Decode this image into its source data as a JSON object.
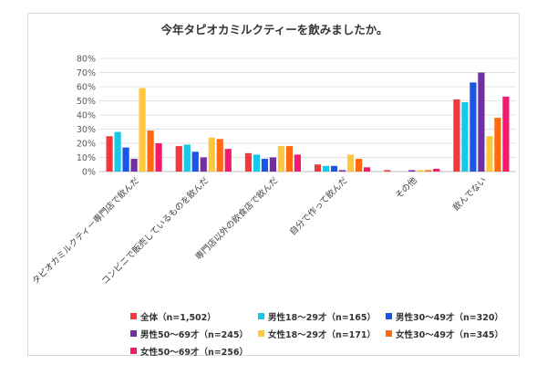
{
  "chart_data": {
    "type": "bar",
    "title": "今年タピオカミルクティーを飲みましたか。",
    "categories": [
      "タピオカミルクティー専門店で飲んだ",
      "コンビニで販売しているものを飲んだ",
      "専門店以外の飲食店で飲んだ",
      "自分で作って飲んだ",
      "その他",
      "飲んでない"
    ],
    "ylim": [
      0,
      80
    ],
    "yticks": [
      "0%",
      "10%",
      "20%",
      "30%",
      "40%",
      "50%",
      "60%",
      "70%",
      "80%"
    ],
    "series": [
      {
        "name": "全体（n=1,502）",
        "color": "#f4383e",
        "values": [
          25,
          18,
          13,
          5,
          1,
          51
        ]
      },
      {
        "name": "男性18～29才（n=165）",
        "color": "#18c8e8",
        "values": [
          28,
          19,
          12,
          4,
          0,
          49
        ]
      },
      {
        "name": "男性30～49才（n=320）",
        "color": "#1a56e6",
        "values": [
          17,
          14,
          9,
          4,
          0,
          63
        ]
      },
      {
        "name": "男性50～69才（n=245）",
        "color": "#7030a0",
        "values": [
          9,
          10,
          10,
          1,
          1,
          70
        ]
      },
      {
        "name": "女性18～29才（n=171）",
        "color": "#ffc83a",
        "values": [
          59,
          24,
          18,
          12,
          1,
          25
        ]
      },
      {
        "name": "女性30～49才（n=345）",
        "color": "#ff6a10",
        "values": [
          29,
          23,
          18,
          9,
          1,
          38
        ]
      },
      {
        "name": "女性50～69才（n=256）",
        "color": "#f51a70",
        "values": [
          20,
          16,
          12,
          3,
          2,
          53
        ]
      }
    ],
    "grid": true,
    "legend_position": "bottom"
  }
}
